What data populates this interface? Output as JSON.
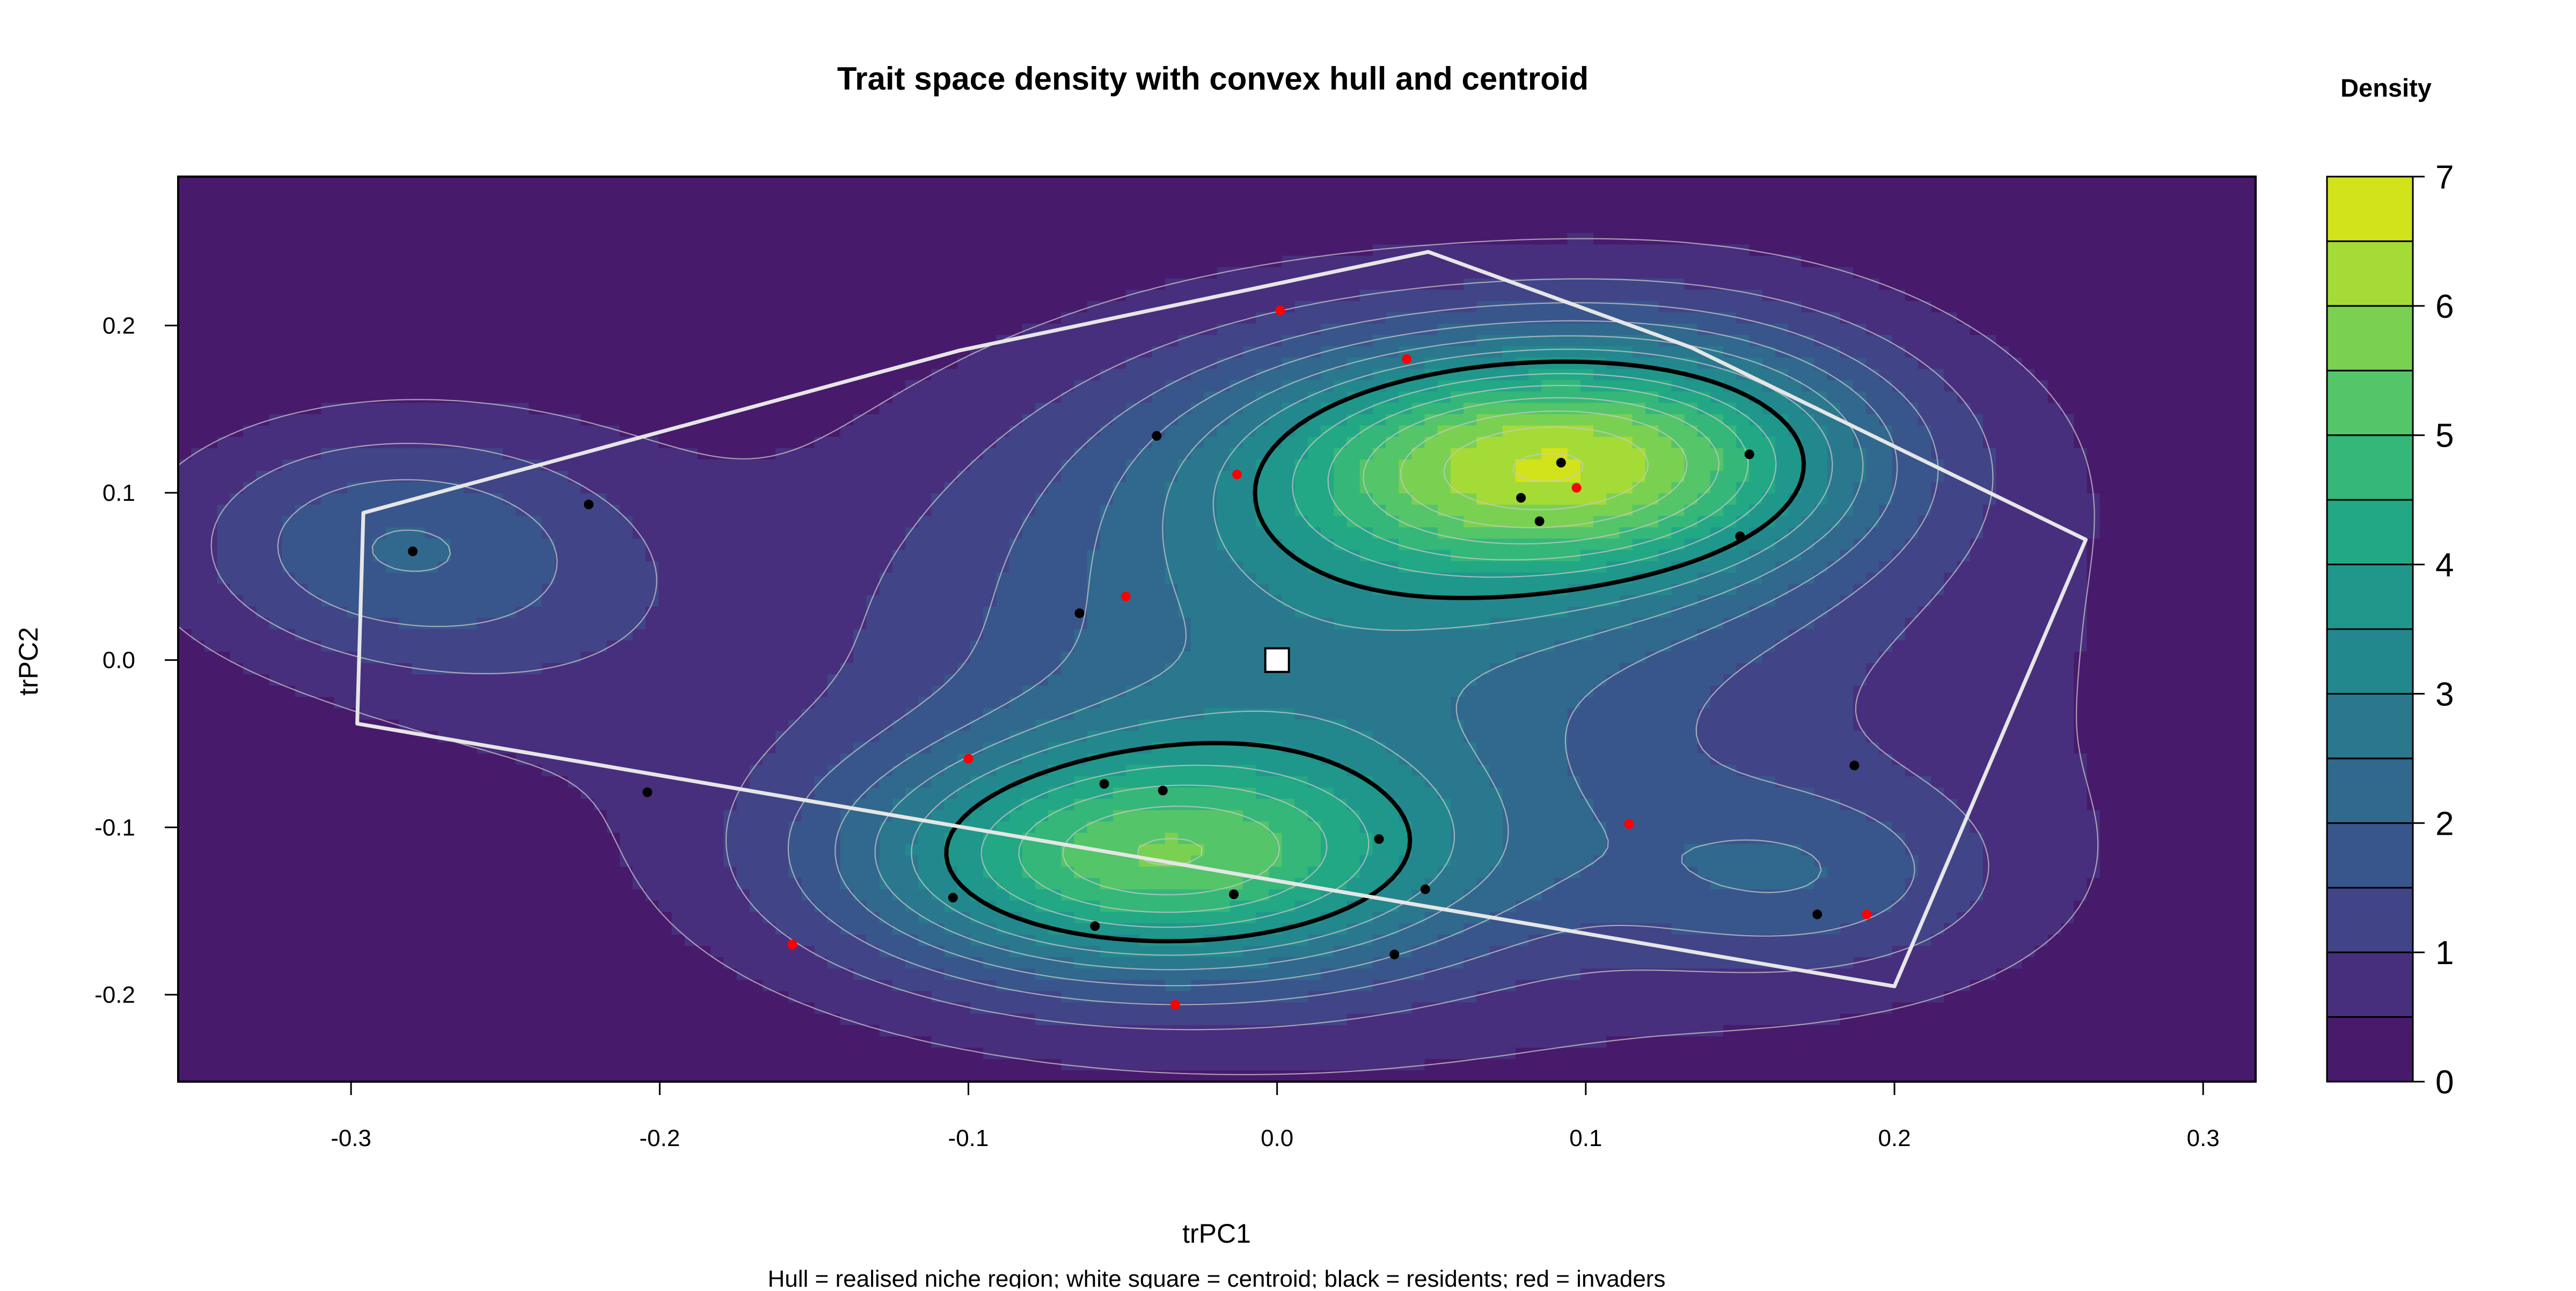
{
  "chart_data": {
    "type": "contour",
    "title": "Trait space density with convex hull and centroid",
    "xlabel": "trPC1",
    "ylabel": "trPC2",
    "caption": "Hull = realised niche region; white square = centroid; black = residents; red = invaders",
    "xlim": [
      -0.356,
      0.317
    ],
    "ylim": [
      -0.252,
      0.289
    ],
    "x_ticks": [
      -0.3,
      -0.2,
      -0.1,
      0.0,
      0.1,
      0.2,
      0.3
    ],
    "x_tick_labels": [
      "-0.3",
      "-0.2",
      "-0.1",
      "0.0",
      "0.1",
      "0.2",
      "0.3"
    ],
    "y_ticks": [
      -0.2,
      -0.1,
      0.0,
      0.1,
      0.2
    ],
    "y_tick_labels": [
      "-0.2",
      "-0.1",
      "0.0",
      "0.1",
      "0.2"
    ],
    "colorbar": {
      "title": "Density",
      "levels": [
        0,
        0.5,
        1,
        1.5,
        2,
        2.5,
        3,
        3.5,
        4,
        4.5,
        5,
        5.5,
        6,
        6.5,
        7
      ],
      "ticks": [
        0,
        1,
        2,
        3,
        4,
        5,
        6,
        7
      ],
      "tick_labels": [
        "0",
        "1",
        "2",
        "3",
        "4",
        "5",
        "6",
        "7"
      ],
      "colors": [
        "#440154",
        "#481A6C",
        "#472F7D",
        "#414487",
        "#39568C",
        "#31688E",
        "#2A788E",
        "#23888E",
        "#1F988B",
        "#22A884",
        "#35B779",
        "#54C568",
        "#7AD151",
        "#A5DB36",
        "#D2E21B",
        "#FDE725"
      ]
    },
    "density_components": [
      {
        "cx": 0.085,
        "cy": 0.12,
        "sx": 0.066,
        "sy": 0.05,
        "w": 4.7
      },
      {
        "cx": -0.04,
        "cy": -0.12,
        "sx": 0.07,
        "sy": 0.05,
        "w": 4.5
      },
      {
        "cx": 0.01,
        "cy": 0.03,
        "sx": 0.09,
        "sy": 0.09,
        "w": 1.6
      },
      {
        "cx": 0.06,
        "cy": -0.02,
        "sx": 0.16,
        "sy": 0.16,
        "w": 1.0
      },
      {
        "cx": 0.17,
        "cy": -0.13,
        "sx": 0.045,
        "sy": 0.04,
        "w": 1.3
      },
      {
        "cx": 0.14,
        "cy": 0.13,
        "sx": 0.05,
        "sy": 0.06,
        "w": 0.9
      },
      {
        "cx": -0.29,
        "cy": 0.07,
        "sx": 0.05,
        "sy": 0.05,
        "w": 1.7
      },
      {
        "cx": -0.24,
        "cy": 0.02,
        "sx": 0.05,
        "sy": 0.07,
        "w": 0.5
      }
    ],
    "highlight_contour_level": 3.5,
    "hull": [
      [
        0.049,
        0.244
      ],
      [
        0.134,
        0.187
      ],
      [
        0.262,
        0.072
      ],
      [
        0.2,
        -0.195
      ],
      [
        -0.298,
        -0.038
      ],
      [
        -0.296,
        0.088
      ],
      [
        -0.103,
        0.185
      ]
    ],
    "centroid": [
      0.0,
      0.0
    ],
    "residents": [
      [
        -0.28,
        0.065
      ],
      [
        -0.223,
        0.093
      ],
      [
        -0.204,
        -0.079
      ],
      [
        -0.105,
        -0.142
      ],
      [
        -0.064,
        0.028
      ],
      [
        -0.059,
        -0.159
      ],
      [
        -0.056,
        -0.074
      ],
      [
        -0.039,
        0.134
      ],
      [
        -0.037,
        -0.078
      ],
      [
        -0.014,
        -0.14
      ],
      [
        0.033,
        -0.107
      ],
      [
        0.038,
        -0.176
      ],
      [
        0.048,
        -0.137
      ],
      [
        0.079,
        0.097
      ],
      [
        0.085,
        0.083
      ],
      [
        0.092,
        0.118
      ],
      [
        0.15,
        0.074
      ],
      [
        0.153,
        0.123
      ],
      [
        0.175,
        -0.152
      ],
      [
        0.187,
        -0.063
      ]
    ],
    "invaders": [
      [
        -0.157,
        -0.17
      ],
      [
        -0.1,
        -0.059
      ],
      [
        -0.049,
        0.038
      ],
      [
        -0.033,
        -0.206
      ],
      [
        -0.013,
        0.111
      ],
      [
        0.001,
        0.209
      ],
      [
        0.042,
        0.18
      ],
      [
        0.097,
        0.103
      ],
      [
        0.114,
        -0.098
      ],
      [
        0.191,
        -0.152
      ]
    ]
  }
}
